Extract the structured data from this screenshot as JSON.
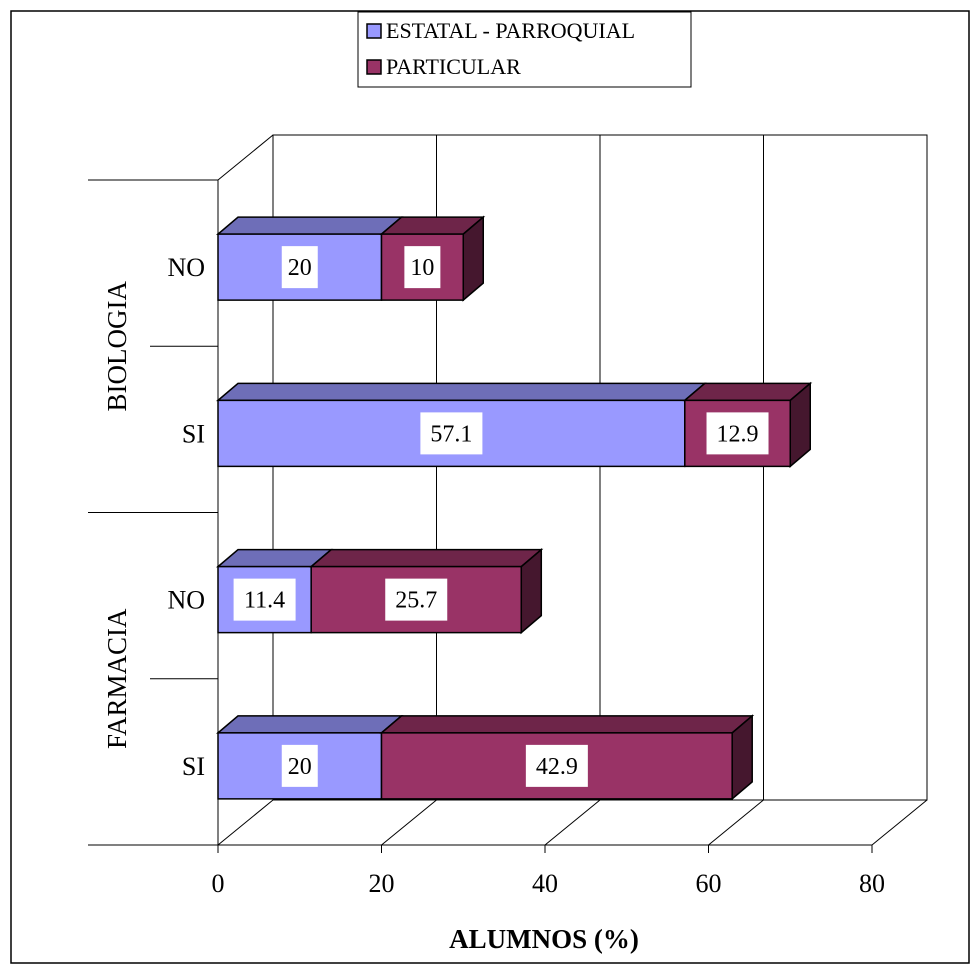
{
  "chart_data": {
    "type": "bar",
    "orientation": "horizontal",
    "stacked": true,
    "three_d": true,
    "xlabel": "ALUMNOS (%)",
    "xlim": [
      0,
      80
    ],
    "xticks": [
      "0",
      "20",
      "40",
      "60",
      "80"
    ],
    "grid": true,
    "legend_position": "top",
    "groups": [
      {
        "name": "BIOLOGIA",
        "categories": [
          "NO",
          "SI"
        ]
      },
      {
        "name": "FARMACIA",
        "categories": [
          "NO",
          "SI"
        ]
      }
    ],
    "categories": [
      "BIOLOGIA - NO",
      "BIOLOGIA - SI",
      "FARMACIA - NO",
      "FARMACIA - SI"
    ],
    "series": [
      {
        "name": "ESTATAL - PARROQUIAL",
        "color": "#9999ff",
        "values": [
          20,
          57.1,
          11.4,
          20
        ],
        "labels": [
          "20",
          "57.1",
          "11.4",
          "20"
        ]
      },
      {
        "name": "PARTICULAR",
        "color": "#993366",
        "values": [
          10,
          12.9,
          25.7,
          42.9
        ],
        "labels": [
          "10",
          "12.9",
          "25.7",
          "42.9"
        ]
      }
    ]
  }
}
